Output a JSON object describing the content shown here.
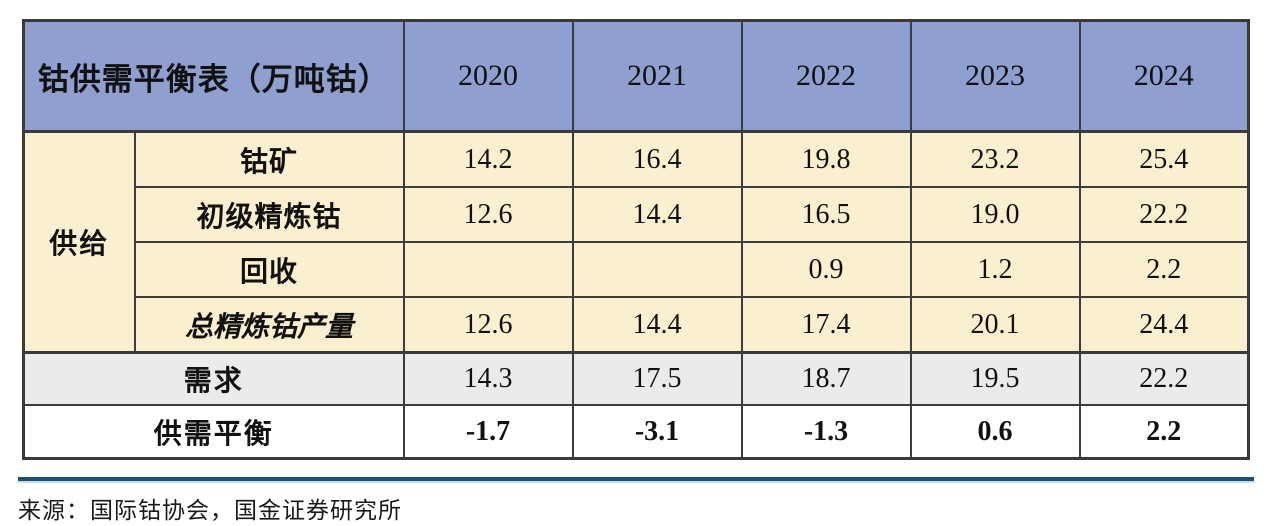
{
  "table": {
    "title": "钴供需平衡表（万吨钴）",
    "years": [
      "2020",
      "2021",
      "2022",
      "2023",
      "2024"
    ],
    "supply_group_label": "供给",
    "supply_rows": [
      {
        "label": "钴矿",
        "values": [
          "14.2",
          "16.4",
          "19.8",
          "23.2",
          "25.4"
        ]
      },
      {
        "label": "初级精炼钴",
        "values": [
          "12.6",
          "14.4",
          "16.5",
          "19.0",
          "22.2"
        ]
      },
      {
        "label": "回收",
        "values": [
          "",
          "",
          "0.9",
          "1.2",
          "2.2"
        ]
      },
      {
        "label": "总精炼钴产量",
        "values": [
          "12.6",
          "14.4",
          "17.4",
          "20.1",
          "24.4"
        ]
      }
    ],
    "demand_row": {
      "label": "需求",
      "values": [
        "14.3",
        "17.5",
        "18.7",
        "19.5",
        "22.2"
      ]
    },
    "balance_row": {
      "label": "供需平衡",
      "values": [
        "-1.7",
        "-3.1",
        "-1.3",
        "0.6",
        "2.2"
      ]
    }
  },
  "source": {
    "text": "来源：国际钴协会，国金证券研究所"
  },
  "colors": {
    "header_bg": "#8e9fd0",
    "supply_bg": "#faf0cf",
    "demand_bg": "#ebebeb",
    "balance_bg": "#ffffff",
    "border": "#3a3a3a",
    "rule_navy": "#1f4e79",
    "rule_light": "#cddcec"
  }
}
